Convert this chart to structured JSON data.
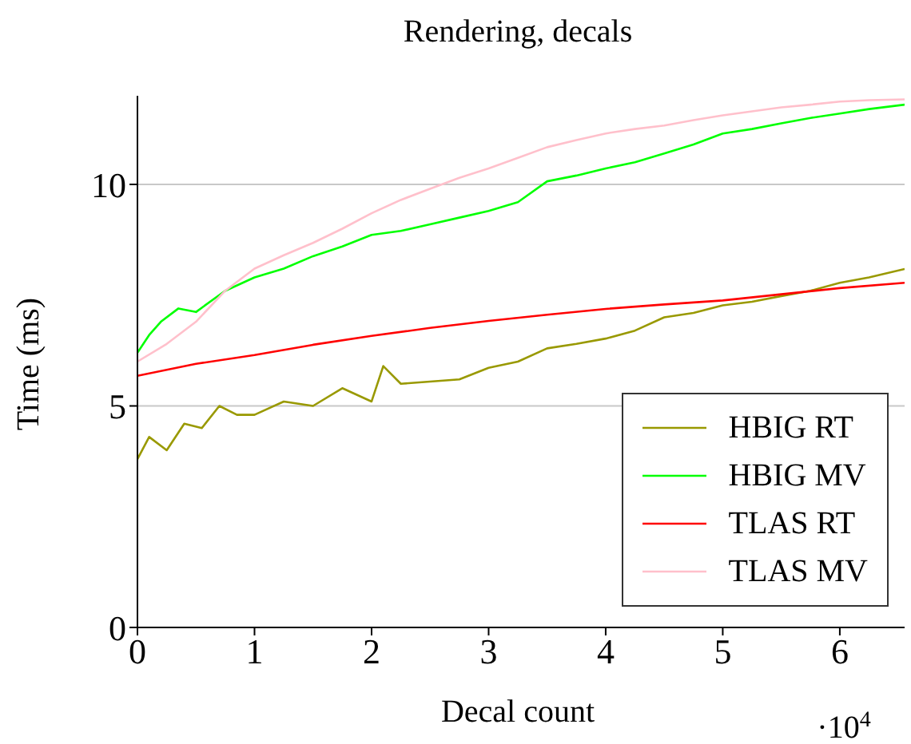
{
  "chart_data": {
    "type": "line",
    "title": "Rendering, decals",
    "xlabel": "Decal count",
    "ylabel": "Time (ms)",
    "annotations": [
      "·10$^{4}$"
    ],
    "xlim": [
      0,
      6.5536
    ],
    "ylim": [
      0,
      12
    ],
    "xticks": [
      0,
      1,
      2,
      3,
      4,
      5,
      6
    ],
    "yticks": [
      0,
      5,
      10
    ],
    "grid": "y",
    "legend": "bottom right",
    "marker": "none",
    "line_style": "solid",
    "series": [
      {
        "name": "HBIG RT",
        "color": "#999900",
        "x": [
          0,
          0.1,
          0.25,
          0.4,
          0.55,
          0.7,
          0.85,
          1,
          1.25,
          1.5,
          1.75,
          2,
          2.1,
          2.25,
          2.5,
          2.75,
          3,
          3.25,
          3.5,
          3.75,
          4,
          4.25,
          4.5,
          4.75,
          5,
          5.25,
          5.5,
          5.75,
          6,
          6.25,
          6.5536
        ],
        "values": [
          3.8,
          4.3,
          4.0,
          4.6,
          4.5,
          5.0,
          4.8,
          4.8,
          5.1,
          5.0,
          5.4,
          5.1,
          5.9,
          5.5,
          5.55,
          5.6,
          5.86,
          6.0,
          6.3,
          6.4,
          6.52,
          6.7,
          7.0,
          7.1,
          7.27,
          7.35,
          7.48,
          7.6,
          7.78,
          7.9,
          8.09
        ]
      },
      {
        "name": "HBIG MV",
        "color": "#00ff00",
        "x": [
          0,
          0.1,
          0.2,
          0.35,
          0.5,
          0.75,
          1,
          1.25,
          1.5,
          1.75,
          2,
          2.25,
          2.5,
          2.75,
          3,
          3.25,
          3.5,
          3.75,
          4,
          4.25,
          4.5,
          4.75,
          5,
          5.25,
          5.5,
          5.75,
          6,
          6.25,
          6.5536
        ],
        "values": [
          6.2,
          6.6,
          6.9,
          7.2,
          7.12,
          7.6,
          7.9,
          8.1,
          8.38,
          8.6,
          8.86,
          8.95,
          9.1,
          9.25,
          9.4,
          9.6,
          10.07,
          10.2,
          10.36,
          10.5,
          10.7,
          10.9,
          11.15,
          11.25,
          11.38,
          11.5,
          11.6,
          11.7,
          11.8
        ]
      },
      {
        "name": "TLAS RT",
        "color": "#ff0000",
        "x": [
          0,
          0.5,
          1,
          1.5,
          2,
          2.5,
          3,
          3.5,
          4,
          4.5,
          5,
          5.5,
          6,
          6.5536
        ],
        "values": [
          5.68,
          5.95,
          6.15,
          6.38,
          6.58,
          6.76,
          6.92,
          7.06,
          7.19,
          7.29,
          7.38,
          7.52,
          7.66,
          7.78
        ]
      },
      {
        "name": "TLAS MV",
        "color": "#ffc0cb",
        "x": [
          0,
          0.25,
          0.5,
          0.75,
          1,
          1.25,
          1.5,
          1.75,
          2,
          2.25,
          2.5,
          2.75,
          3,
          3.25,
          3.5,
          3.75,
          4,
          4.25,
          4.5,
          4.75,
          5,
          5.25,
          5.5,
          5.75,
          6,
          6.25,
          6.5536
        ],
        "values": [
          6.0,
          6.4,
          6.9,
          7.6,
          8.1,
          8.4,
          8.68,
          9.0,
          9.35,
          9.65,
          9.9,
          10.15,
          10.36,
          10.6,
          10.84,
          11.0,
          11.15,
          11.25,
          11.33,
          11.45,
          11.56,
          11.65,
          11.74,
          11.8,
          11.87,
          11.9,
          11.92
        ]
      }
    ]
  }
}
